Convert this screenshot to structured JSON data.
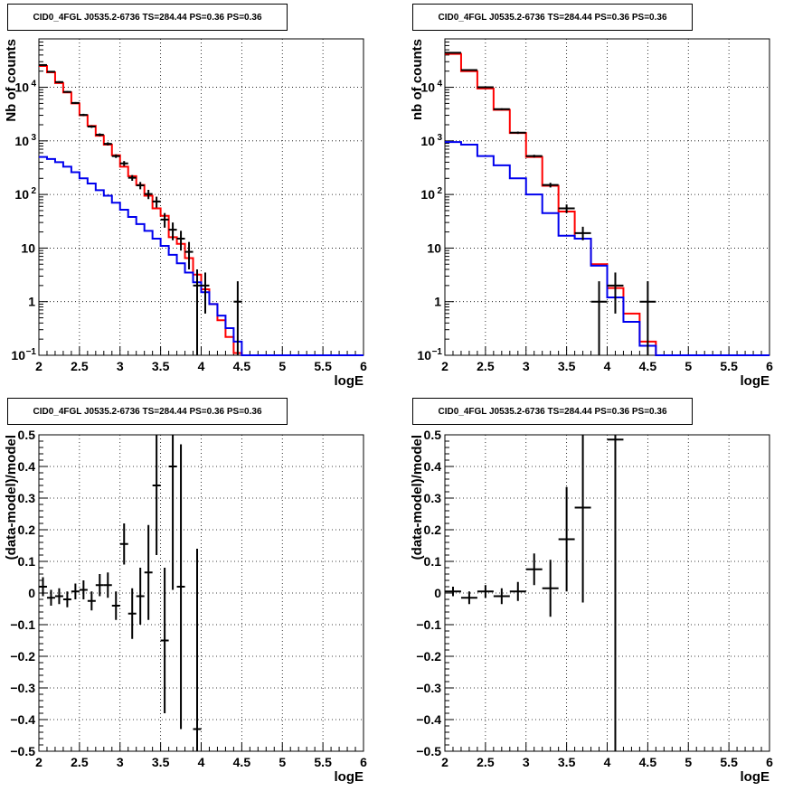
{
  "chart_data": [
    {
      "type": "line",
      "title": "CID0_4FGL J0535.2-6736 TS=284.44 PS=0.36 PS=0.36",
      "xlabel": "logE",
      "ylabel": "Nb of counts",
      "xlim": [
        2,
        6
      ],
      "ylim": [
        0.1,
        80000
      ],
      "yscale": "log",
      "grid": true,
      "x_ticks": [
        "2",
        "2.5",
        "3",
        "3.5",
        "4",
        "4.5",
        "5",
        "5.5",
        "6"
      ],
      "y_ticks": [
        {
          "value": 0.1,
          "label": "10",
          "sup": "−1"
        },
        {
          "value": 1,
          "label": "1",
          "sup": ""
        },
        {
          "value": 10,
          "label": "10",
          "sup": ""
        },
        {
          "value": 100,
          "label": "10",
          "sup": "2"
        },
        {
          "value": 1000,
          "label": "10",
          "sup": "3"
        },
        {
          "value": 10000,
          "label": "10",
          "sup": "4"
        }
      ],
      "bin_edges": [
        2,
        2.1,
        2.2,
        2.3,
        2.4,
        2.5,
        2.6,
        2.7,
        2.8,
        2.9,
        3,
        3.1,
        3.2,
        3.3,
        3.4,
        3.5,
        3.6,
        3.7,
        3.8,
        3.9,
        4,
        4.1,
        4.2,
        4.3,
        4.4,
        4.5,
        4.6,
        4.7,
        4.8,
        4.9,
        5,
        5.1,
        5.2,
        5.3,
        5.4,
        5.5,
        5.6,
        5.7,
        5.8,
        5.9,
        6
      ],
      "series": [
        {
          "color": "#ff0000",
          "values": [
            25000,
            19000,
            12000,
            8000,
            5000,
            3000,
            1900,
            1250,
            850,
            540,
            330,
            220,
            150,
            95,
            55,
            40,
            16,
            12,
            6.5,
            3.2,
            1.7,
            0.9,
            0.45,
            0.22,
            0.11,
            0.1,
            0.1,
            0.1,
            0.1,
            0.1,
            0.1,
            0.1,
            0.1,
            0.1,
            0.1,
            0.1,
            0.1,
            0.1,
            0.1,
            0.1
          ]
        },
        {
          "color": "#0000ee",
          "values": [
            500,
            460,
            400,
            330,
            260,
            200,
            160,
            120,
            95,
            70,
            52,
            38,
            28,
            21,
            15,
            11,
            7.5,
            5.2,
            3.5,
            2.3,
            1.5,
            0.9,
            0.55,
            0.32,
            0.18,
            0.1,
            0.1,
            0.1,
            0.1,
            0.1,
            0.1,
            0.1,
            0.1,
            0.1,
            0.1,
            0.1,
            0.1,
            0.1,
            0.1,
            0.1
          ]
        }
      ],
      "data_points": [
        {
          "x": 2.05,
          "y": 26000,
          "xerr": 0.05,
          "ylo": 25000,
          "yhi": 27000
        },
        {
          "x": 2.15,
          "y": 19500,
          "xerr": 0.05,
          "ylo": 19000,
          "yhi": 20000
        },
        {
          "x": 2.25,
          "y": 12500,
          "xerr": 0.05,
          "ylo": 12000,
          "yhi": 13000
        },
        {
          "x": 2.35,
          "y": 8200,
          "xerr": 0.05,
          "ylo": 7900,
          "yhi": 8500
        },
        {
          "x": 2.45,
          "y": 5100,
          "xerr": 0.05,
          "ylo": 4900,
          "yhi": 5300
        },
        {
          "x": 2.55,
          "y": 3050,
          "xerr": 0.05,
          "ylo": 2900,
          "yhi": 3200
        },
        {
          "x": 2.65,
          "y": 1850,
          "xerr": 0.05,
          "ylo": 1750,
          "yhi": 1950
        },
        {
          "x": 2.75,
          "y": 1300,
          "xerr": 0.05,
          "ylo": 1220,
          "yhi": 1380
        },
        {
          "x": 2.85,
          "y": 880,
          "xerr": 0.05,
          "ylo": 820,
          "yhi": 940
        },
        {
          "x": 2.95,
          "y": 520,
          "xerr": 0.05,
          "ylo": 480,
          "yhi": 560
        },
        {
          "x": 3.05,
          "y": 380,
          "xerr": 0.05,
          "ylo": 340,
          "yhi": 420
        },
        {
          "x": 3.15,
          "y": 205,
          "xerr": 0.05,
          "ylo": 180,
          "yhi": 230
        },
        {
          "x": 3.25,
          "y": 148,
          "xerr": 0.05,
          "ylo": 125,
          "yhi": 171
        },
        {
          "x": 3.35,
          "y": 102,
          "xerr": 0.05,
          "ylo": 82,
          "yhi": 122
        },
        {
          "x": 3.45,
          "y": 74,
          "xerr": 0.05,
          "ylo": 57,
          "yhi": 91
        },
        {
          "x": 3.55,
          "y": 34,
          "xerr": 0.05,
          "ylo": 24,
          "yhi": 45
        },
        {
          "x": 3.65,
          "y": 22,
          "xerr": 0.05,
          "ylo": 14,
          "yhi": 30
        },
        {
          "x": 3.75,
          "y": 15,
          "xerr": 0.05,
          "ylo": 9,
          "yhi": 21
        },
        {
          "x": 3.85,
          "y": 8.5,
          "xerr": 0.05,
          "ylo": 4,
          "yhi": 13
        },
        {
          "x": 3.95,
          "y": 2,
          "xerr": 0.05,
          "ylo": 0.1,
          "yhi": 4
        },
        {
          "x": 4.05,
          "y": 2,
          "xerr": 0.05,
          "ylo": 0.6,
          "yhi": 3.5
        },
        {
          "x": 4.45,
          "y": 1,
          "xerr": 0.05,
          "ylo": 0.1,
          "yhi": 2.4
        }
      ]
    },
    {
      "type": "line",
      "title": "CID0_4FGL J0535.2-6736 TS=284.44 PS=0.36 PS=0.36",
      "xlabel": "logE",
      "ylabel": "nb of counts",
      "xlim": [
        2,
        6
      ],
      "ylim": [
        0.1,
        80000
      ],
      "yscale": "log",
      "grid": true,
      "x_ticks": [
        "2",
        "2.5",
        "3",
        "3.5",
        "4",
        "4.5",
        "5",
        "5.5",
        "6"
      ],
      "y_ticks": [
        {
          "value": 0.1,
          "label": "10",
          "sup": "−1"
        },
        {
          "value": 1,
          "label": "1",
          "sup": ""
        },
        {
          "value": 10,
          "label": "10",
          "sup": ""
        },
        {
          "value": 100,
          "label": "10",
          "sup": "2"
        },
        {
          "value": 1000,
          "label": "10",
          "sup": "3"
        },
        {
          "value": 10000,
          "label": "10",
          "sup": "4"
        }
      ],
      "bin_edges": [
        2,
        2.2,
        2.4,
        2.6,
        2.8,
        3,
        3.2,
        3.4,
        3.6,
        3.8,
        4,
        4.2,
        4.4,
        4.6,
        4.8,
        5,
        5.2,
        5.4,
        5.6,
        5.8,
        6
      ],
      "series": [
        {
          "color": "#ff0000",
          "values": [
            42000,
            20000,
            9500,
            3800,
            1400,
            500,
            145,
            48,
            15,
            5,
            1.8,
            0.6,
            0.18,
            0.1,
            0.1,
            0.1,
            0.1,
            0.1,
            0.1,
            0.1
          ]
        },
        {
          "color": "#0000ee",
          "values": [
            950,
            850,
            520,
            350,
            200,
            100,
            45,
            17,
            15,
            4.7,
            1.2,
            0.42,
            0.15,
            0.1,
            0.1,
            0.1,
            0.1,
            0.1,
            0.1,
            0.1
          ]
        }
      ],
      "data_points": [
        {
          "x": 2.1,
          "y": 44000,
          "xerr": 0.1,
          "ylo": 43000,
          "yhi": 45000
        },
        {
          "x": 2.3,
          "y": 21000,
          "xerr": 0.1,
          "ylo": 20500,
          "yhi": 21500
        },
        {
          "x": 2.5,
          "y": 10000,
          "xerr": 0.1,
          "ylo": 9700,
          "yhi": 10300
        },
        {
          "x": 2.7,
          "y": 3900,
          "xerr": 0.1,
          "ylo": 3750,
          "yhi": 4050
        },
        {
          "x": 2.9,
          "y": 1420,
          "xerr": 0.1,
          "ylo": 1350,
          "yhi": 1490
        },
        {
          "x": 3.1,
          "y": 520,
          "xerr": 0.1,
          "ylo": 490,
          "yhi": 550
        },
        {
          "x": 3.3,
          "y": 150,
          "xerr": 0.1,
          "ylo": 135,
          "yhi": 165
        },
        {
          "x": 3.5,
          "y": 55,
          "xerr": 0.1,
          "ylo": 45,
          "yhi": 65
        },
        {
          "x": 3.7,
          "y": 19,
          "xerr": 0.1,
          "ylo": 14,
          "yhi": 25
        },
        {
          "x": 3.9,
          "y": 1,
          "xerr": 0.1,
          "ylo": 0.1,
          "yhi": 2.4
        },
        {
          "x": 4.1,
          "y": 2,
          "xerr": 0.1,
          "ylo": 0.6,
          "yhi": 3.5
        },
        {
          "x": 4.5,
          "y": 1,
          "xerr": 0.1,
          "ylo": 0.1,
          "yhi": 2.4
        }
      ]
    },
    {
      "type": "scatter",
      "title": "CID0_4FGL J0535.2-6736 TS=284.44 PS=0.36 PS=0.36",
      "xlabel": "logE",
      "ylabel": "(data-model)/model",
      "xlim": [
        2,
        6
      ],
      "ylim": [
        -0.5,
        0.5
      ],
      "grid": true,
      "x_ticks": [
        "2",
        "2.5",
        "3",
        "3.5",
        "4",
        "4.5",
        "5",
        "5.5",
        "6"
      ],
      "y_ticks": [
        "−0.5",
        "−0.4",
        "−0.3",
        "−0.2",
        "−0.1",
        "0",
        "0.1",
        "0.2",
        "0.3",
        "0.4",
        "0.5"
      ],
      "data_points": [
        {
          "x": 2.05,
          "y": 0.02,
          "xerr": 0.05,
          "yerr": 0.03
        },
        {
          "x": 2.15,
          "y": -0.015,
          "xerr": 0.05,
          "yerr": 0.025
        },
        {
          "x": 2.25,
          "y": -0.01,
          "xerr": 0.05,
          "yerr": 0.025
        },
        {
          "x": 2.35,
          "y": -0.02,
          "xerr": 0.05,
          "yerr": 0.025
        },
        {
          "x": 2.45,
          "y": 0.005,
          "xerr": 0.05,
          "yerr": 0.025
        },
        {
          "x": 2.55,
          "y": 0.01,
          "xerr": 0.05,
          "yerr": 0.03
        },
        {
          "x": 2.65,
          "y": -0.025,
          "xerr": 0.05,
          "yerr": 0.03
        },
        {
          "x": 2.75,
          "y": 0.025,
          "xerr": 0.05,
          "yerr": 0.035
        },
        {
          "x": 2.85,
          "y": 0.025,
          "xerr": 0.05,
          "yerr": 0.04
        },
        {
          "x": 2.95,
          "y": -0.04,
          "xerr": 0.05,
          "yerr": 0.045
        },
        {
          "x": 3.05,
          "y": 0.155,
          "xerr": 0.05,
          "yerr": 0.065
        },
        {
          "x": 3.15,
          "y": -0.065,
          "xerr": 0.05,
          "yerr": 0.08
        },
        {
          "x": 3.25,
          "y": -0.01,
          "xerr": 0.05,
          "yerr": 0.09
        },
        {
          "x": 3.35,
          "y": 0.065,
          "xerr": 0.05,
          "yerr": 0.15
        },
        {
          "x": 3.45,
          "y": 0.34,
          "xerr": 0.05,
          "yerr": 0.22
        },
        {
          "x": 3.55,
          "y": -0.15,
          "xerr": 0.05,
          "yerr": 0.23
        },
        {
          "x": 3.65,
          "y": 0.4,
          "xerr": 0.05,
          "yerr": 0.39
        },
        {
          "x": 3.75,
          "y": 0.02,
          "xerr": 0.05,
          "yerr": 0.45
        },
        {
          "x": 3.95,
          "y": -0.43,
          "xerr": 0.05,
          "yerr": 0.57
        }
      ]
    },
    {
      "type": "scatter",
      "title": "CID0_4FGL J0535.2-6736 TS=284.44 PS=0.36 PS=0.36",
      "xlabel": "logE",
      "ylabel": "(data-model)/model",
      "xlim": [
        2,
        6
      ],
      "ylim": [
        -0.5,
        0.5
      ],
      "grid": true,
      "x_ticks": [
        "2",
        "2.5",
        "3",
        "3.5",
        "4",
        "4.5",
        "5",
        "5.5",
        "6"
      ],
      "y_ticks": [
        "−0.5",
        "−0.4",
        "−0.3",
        "−0.2",
        "−0.1",
        "0",
        "0.1",
        "0.2",
        "0.3",
        "0.4",
        "0.5"
      ],
      "data_points": [
        {
          "x": 2.1,
          "y": 0.005,
          "xerr": 0.1,
          "yerr": 0.015
        },
        {
          "x": 2.3,
          "y": -0.015,
          "xerr": 0.1,
          "yerr": 0.02
        },
        {
          "x": 2.5,
          "y": 0.005,
          "xerr": 0.1,
          "yerr": 0.02
        },
        {
          "x": 2.7,
          "y": -0.01,
          "xerr": 0.1,
          "yerr": 0.025
        },
        {
          "x": 2.9,
          "y": 0.005,
          "xerr": 0.1,
          "yerr": 0.03
        },
        {
          "x": 3.1,
          "y": 0.075,
          "xerr": 0.1,
          "yerr": 0.05
        },
        {
          "x": 3.3,
          "y": 0.015,
          "xerr": 0.1,
          "yerr": 0.09
        },
        {
          "x": 3.5,
          "y": 0.17,
          "xerr": 0.1,
          "yerr": 0.165
        },
        {
          "x": 3.7,
          "y": 0.27,
          "xerr": 0.1,
          "yerr": 0.3
        },
        {
          "x": 4.1,
          "y": 0.485,
          "xerr": 0.1,
          "yerr": 1.0
        }
      ]
    }
  ]
}
